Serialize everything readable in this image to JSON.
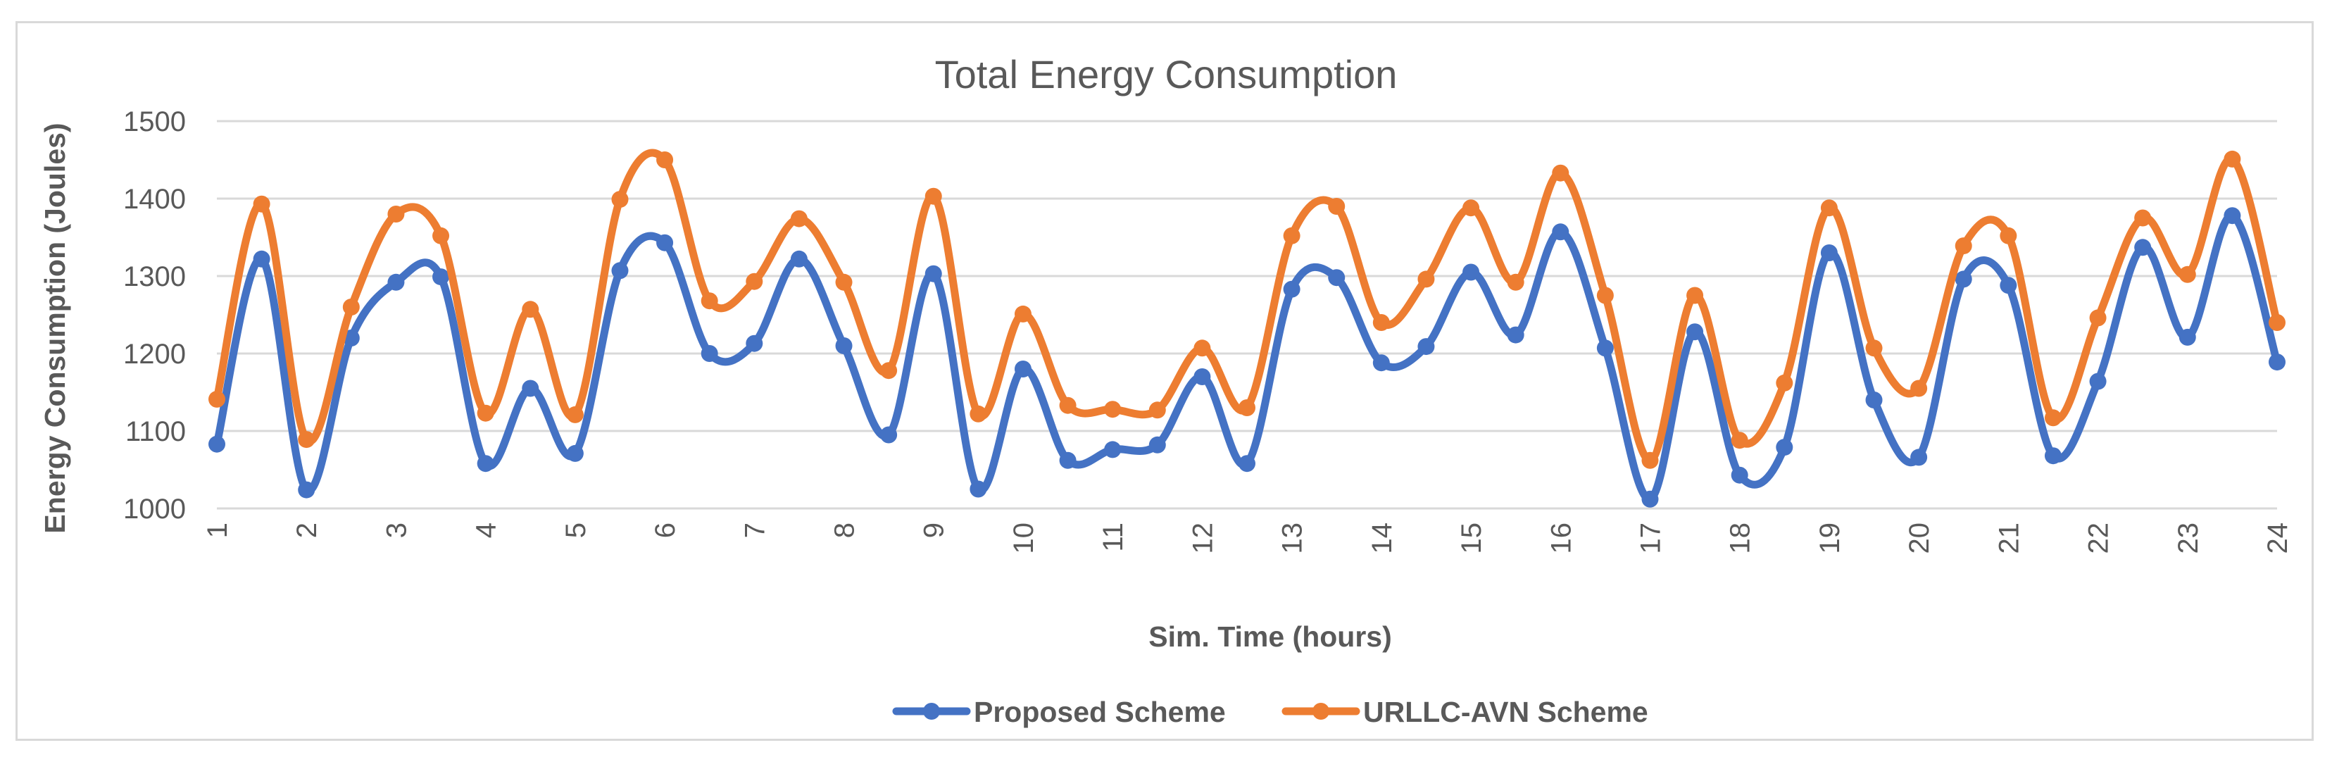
{
  "chart_data": {
    "type": "line",
    "title": "Total Energy Consumption",
    "xlabel": "Sim. Time (hours)",
    "ylabel": "Energy Consumption (Joules)",
    "ylim": [
      1000,
      1500
    ],
    "yticks": [
      1000,
      1100,
      1200,
      1300,
      1400,
      1500
    ],
    "xlim": [
      1,
      24
    ],
    "xticks": [
      "1",
      "2",
      "3",
      "4",
      "5",
      "6",
      "7",
      "8",
      "9",
      "10",
      "11",
      "12",
      "13",
      "14",
      "15",
      "16",
      "17",
      "18",
      "19",
      "20",
      "21",
      "22",
      "23",
      "24"
    ],
    "grid": true,
    "legend_position": "bottom",
    "smooth": true,
    "x": [
      1,
      1.5,
      2,
      2.5,
      3,
      3.5,
      4,
      4.5,
      5,
      5.5,
      6,
      6.5,
      7,
      7.5,
      8,
      8.5,
      9,
      9.5,
      10,
      10.5,
      11,
      11.5,
      12,
      12.5,
      13,
      13.5,
      14,
      14.5,
      15,
      15.5,
      16,
      16.5,
      17,
      17.5,
      18,
      18.5,
      19,
      19.5,
      20,
      20.5,
      21,
      21.5,
      22,
      22.5,
      23,
      23.5,
      24
    ],
    "series": [
      {
        "name": "Proposed Scheme",
        "color": "#4472c4",
        "values": [
          1083,
          1322,
          1024,
          1220,
          1292,
          1299,
          1058,
          1155,
          1071,
          1307,
          1343,
          1200,
          1213,
          1322,
          1210,
          1095,
          1303,
          1025,
          1180,
          1062,
          1076,
          1082,
          1170,
          1058,
          1283,
          1298,
          1188,
          1209,
          1305,
          1224,
          1357,
          1207,
          1012,
          1228,
          1043,
          1079,
          1330,
          1140,
          1066,
          1296,
          1288,
          1068,
          1164,
          1337,
          1221,
          1378,
          1189
        ]
      },
      {
        "name": "URLLC-AVN Scheme",
        "color": "#ed7d31",
        "values": [
          1141,
          1393,
          1089,
          1260,
          1380,
          1352,
          1123,
          1257,
          1121,
          1399,
          1450,
          1268,
          1293,
          1374,
          1292,
          1178,
          1403,
          1122,
          1251,
          1133,
          1128,
          1127,
          1207,
          1130,
          1352,
          1390,
          1240,
          1296,
          1388,
          1292,
          1433,
          1275,
          1062,
          1275,
          1088,
          1162,
          1388,
          1207,
          1155,
          1339,
          1352,
          1117,
          1246,
          1375,
          1302,
          1451,
          1240
        ]
      }
    ]
  }
}
